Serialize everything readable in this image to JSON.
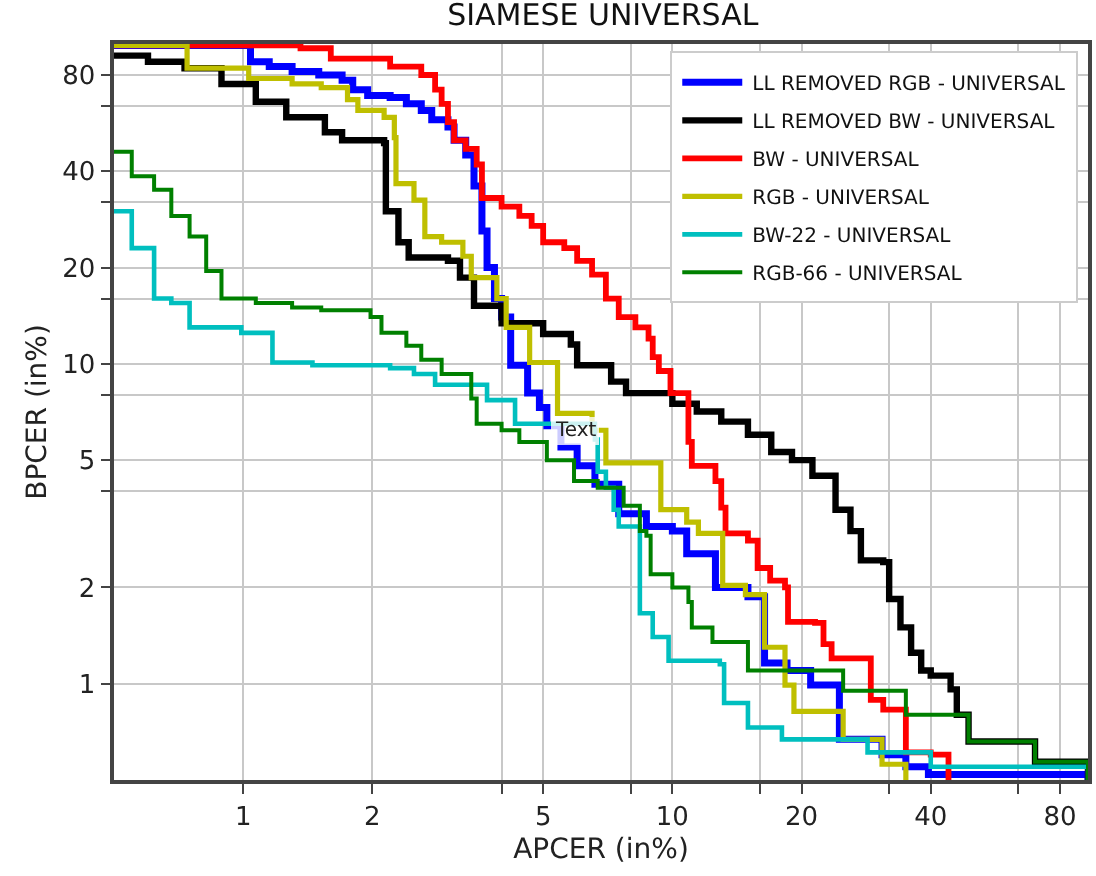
{
  "chart_data": {
    "type": "step",
    "title": "SIAMESE UNIVERSAL",
    "xlabel": "APCER (in%)",
    "ylabel": "BPCER (in%)",
    "log": "xy",
    "grid": true,
    "legend": "top right",
    "marker": "none",
    "line_style": "solid",
    "xlim": [
      0.5,
      93
    ],
    "ylim": [
      0.5,
      100
    ],
    "xticks": [
      1,
      2,
      {
        "value": 4,
        "label": null
      },
      5,
      {
        "value": 8,
        "label": null
      },
      10,
      {
        "value": 16,
        "label": null
      },
      20,
      {
        "value": 32,
        "label": null
      },
      40,
      {
        "value": 64,
        "label": null
      },
      80
    ],
    "yticks": [
      1,
      2,
      {
        "value": 4,
        "label": null
      },
      5,
      {
        "value": 8,
        "label": null
      },
      10,
      {
        "value": 16,
        "label": null
      },
      20,
      {
        "value": 32,
        "label": null
      },
      40,
      {
        "value": 64,
        "label": null
      },
      80
    ],
    "annotations": [
      {
        "text": "Text",
        "x": 5.2,
        "y": 6.2
      }
    ],
    "series": [
      {
        "name": "LL REMOVED RGB - UNIVERSAL",
        "color": "#0000ff",
        "x": [
          0.5,
          1.04,
          1.15,
          1.3,
          1.5,
          1.7,
          1.8,
          1.95,
          2.2,
          2.4,
          2.6,
          2.75,
          3.0,
          3.1,
          3.3,
          3.45,
          3.6,
          3.7,
          3.85,
          4.0,
          4.2,
          4.6,
          4.9,
          5.1,
          5.5,
          6.0,
          6.6,
          7.5,
          8.7,
          10,
          10.8,
          12.6,
          15,
          16.4,
          18.5,
          21,
          24.5,
          30.8,
          35,
          39.5,
          93
        ],
        "values": [
          99,
          88,
          85,
          82,
          80,
          77,
          72,
          69,
          68,
          65,
          62,
          58,
          55,
          50,
          45,
          36,
          26,
          20,
          16,
          14,
          9.9,
          8.1,
          7.3,
          6.4,
          5.5,
          4.8,
          4.2,
          3.4,
          3.1,
          3.0,
          2.55,
          2.0,
          1.87,
          1.16,
          1.1,
          0.99,
          0.67,
          0.6,
          0.55,
          0.52,
          0.5
        ]
      },
      {
        "name": "LL REMOVED BW - UNIVERSAL",
        "color": "#000000",
        "x": [
          0.5,
          0.6,
          0.73,
          0.89,
          1.07,
          1.26,
          1.55,
          1.7,
          2.13,
          2.15,
          2.3,
          2.43,
          3.0,
          3.2,
          3.45,
          4.0,
          5.0,
          5.8,
          6.0,
          7.2,
          7.8,
          10,
          11.4,
          13,
          15,
          17,
          19,
          21.2,
          24,
          26,
          27.5,
          31,
          32,
          34,
          36,
          38,
          40,
          44.5,
          46,
          49,
          70,
          93
        ],
        "values": [
          92,
          88,
          84,
          75,
          66,
          59,
          53,
          50,
          49,
          30,
          24,
          21.5,
          21,
          18.6,
          15.2,
          13.4,
          12.4,
          11.5,
          9.9,
          8.8,
          8.1,
          7.5,
          7.1,
          6.6,
          6.0,
          5.3,
          5.0,
          4.47,
          3.5,
          3.0,
          2.43,
          2.4,
          1.84,
          1.5,
          1.25,
          1.1,
          1.06,
          0.96,
          0.8,
          0.66,
          0.57,
          0.5
        ]
      },
      {
        "name": "BW - UNIVERSAL",
        "color": "#ff0000",
        "x": [
          0.5,
          1.36,
          1.6,
          2.2,
          2.6,
          2.8,
          2.9,
          3.0,
          3.1,
          3.3,
          3.5,
          3.6,
          4.0,
          4.4,
          4.7,
          5.0,
          5.6,
          6.0,
          6.5,
          7.0,
          7.5,
          8.2,
          8.8,
          9.0,
          9.3,
          9.9,
          10.9,
          11.1,
          12.6,
          13,
          13.3,
          15,
          15.8,
          16.9,
          18.3,
          18.6,
          21.5,
          22.5,
          23.5,
          25.8,
          29,
          31,
          35,
          40,
          44
        ],
        "values": [
          99,
          97,
          90,
          85,
          80,
          72,
          65,
          57,
          50,
          47,
          42,
          33,
          31,
          29,
          27,
          24,
          23,
          21,
          19,
          16,
          14,
          13,
          12,
          10.5,
          9.5,
          8.1,
          5.7,
          4.8,
          4.3,
          3.55,
          2.95,
          2.8,
          2.3,
          2.1,
          2.0,
          1.56,
          1.55,
          1.33,
          1.2,
          1.2,
          0.89,
          0.83,
          0.61,
          0.6,
          0.5
        ]
      },
      {
        "name": "RGB - UNIVERSAL",
        "color": "#bfbf00",
        "x": [
          0.5,
          0.74,
          1.03,
          1.3,
          1.52,
          1.75,
          1.85,
          2.13,
          2.25,
          2.27,
          2.5,
          2.65,
          2.9,
          3.25,
          3.4,
          3.9,
          4.1,
          4.65,
          5.4,
          6.5,
          7.0,
          7.5,
          9.4,
          10.8,
          11.5,
          13.1,
          14.8,
          16.4,
          18.3,
          19.2,
          21.5,
          25,
          30.8,
          35
        ],
        "values": [
          99,
          84,
          78,
          75,
          73,
          67,
          62,
          59,
          51,
          36.6,
          32.5,
          25,
          24,
          21.7,
          18.6,
          16,
          13,
          10.1,
          7.0,
          6.2,
          4.9,
          4.9,
          3.5,
          3.2,
          2.95,
          2.03,
          1.9,
          1.3,
          0.99,
          0.82,
          0.82,
          0.67,
          0.56,
          0.5
        ]
      },
      {
        "name": "BW-22 - UNIVERSAL",
        "color": "#00bfbf",
        "x": [
          0.5,
          0.55,
          0.62,
          0.68,
          0.75,
          0.99,
          1.17,
          1.45,
          2.2,
          2.5,
          2.8,
          3.7,
          4.3,
          6.6,
          6.7,
          7.0,
          7.3,
          7.5,
          8.4,
          9.0,
          9.8,
          12.9,
          13.2,
          15,
          18,
          28.5,
          40,
          93
        ],
        "values": [
          30,
          23,
          16,
          15.5,
          13,
          12.5,
          10.1,
          9.9,
          9.7,
          9.3,
          8.6,
          7.7,
          6.5,
          5.8,
          4.6,
          4.1,
          3.5,
          3.1,
          1.66,
          1.4,
          1.18,
          1.15,
          0.87,
          0.73,
          0.67,
          0.61,
          0.55,
          0.5
        ]
      },
      {
        "name": "RGB-66 - UNIVERSAL",
        "color": "#008000",
        "x": [
          0.5,
          0.55,
          0.62,
          0.68,
          0.75,
          0.82,
          0.89,
          1.07,
          1.3,
          1.52,
          1.98,
          2.1,
          2.4,
          2.6,
          2.9,
          3.4,
          3.5,
          4.0,
          4.4,
          5.1,
          5.9,
          6.7,
          7.7,
          8.4,
          8.7,
          8.9,
          10,
          10.9,
          11.1,
          12.4,
          15,
          18.3,
          25,
          35,
          49,
          70,
          93
        ],
        "values": [
          46,
          38.6,
          35,
          29,
          25,
          19.5,
          16,
          15.5,
          15,
          14.7,
          14,
          12.5,
          11.4,
          10.3,
          9.3,
          7.8,
          6.5,
          6.2,
          5.7,
          5.0,
          4.3,
          4.1,
          3.6,
          3.0,
          2.9,
          2.2,
          2.0,
          1.8,
          1.5,
          1.35,
          1.1,
          1.1,
          0.95,
          0.8,
          0.66,
          0.57,
          0.5
        ]
      }
    ]
  }
}
